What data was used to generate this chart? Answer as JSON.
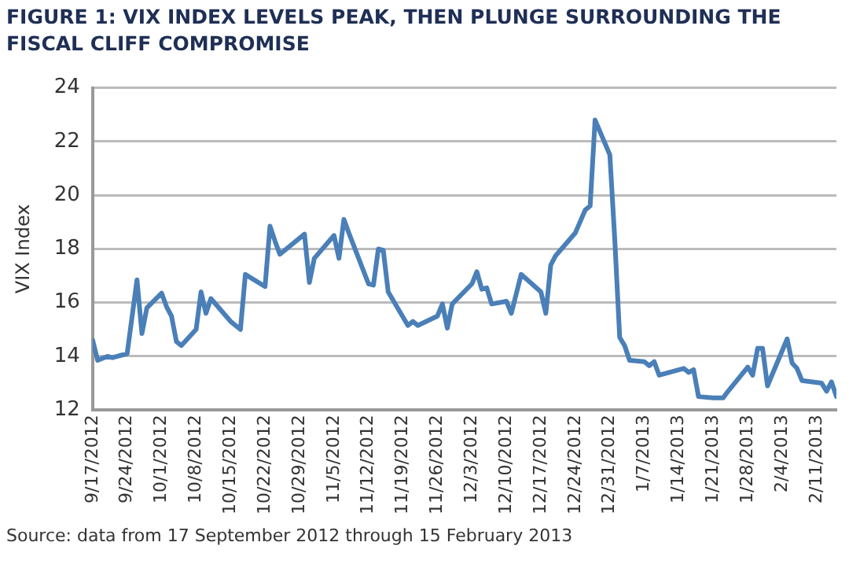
{
  "chart_data": {
    "type": "line",
    "title": "FIGURE 1: VIX INDEX LEVELS PEAK, THEN PLUNGE SURROUNDING THE FISCAL CLIFF COMPROMISE",
    "ylabel": "VIX Index",
    "annotations": [
      "Source: data from 17 September 2012 through 15 February 2013"
    ],
    "x": [
      "2012-09-17",
      "2012-09-18",
      "2012-09-20",
      "2012-09-21",
      "2012-09-24",
      "2012-09-26",
      "2012-09-27",
      "2012-09-28",
      "2012-10-01",
      "2012-10-02",
      "2012-10-03",
      "2012-10-04",
      "2012-10-05",
      "2012-10-08",
      "2012-10-09",
      "2012-10-10",
      "2012-10-11",
      "2012-10-15",
      "2012-10-17",
      "2012-10-18",
      "2012-10-22",
      "2012-10-23",
      "2012-10-24",
      "2012-10-25",
      "2012-10-30",
      "2012-10-31",
      "2012-11-01",
      "2012-11-05",
      "2012-11-06",
      "2012-11-07",
      "2012-11-08",
      "2012-11-12",
      "2012-11-13",
      "2012-11-14",
      "2012-11-15",
      "2012-11-16",
      "2012-11-20",
      "2012-11-21",
      "2012-11-22",
      "2012-11-26",
      "2012-11-27",
      "2012-11-28",
      "2012-11-29",
      "2012-12-03",
      "2012-12-04",
      "2012-12-05",
      "2012-12-06",
      "2012-12-07",
      "2012-12-10",
      "2012-12-11",
      "2012-12-13",
      "2012-12-17",
      "2012-12-18",
      "2012-12-19",
      "2012-12-20",
      "2012-12-24",
      "2012-12-26",
      "2012-12-27",
      "2012-12-28",
      "2012-12-31",
      "2013-01-01",
      "2013-01-02",
      "2013-01-03",
      "2013-01-04",
      "2013-01-07",
      "2013-01-08",
      "2013-01-09",
      "2013-01-10",
      "2013-01-15",
      "2013-01-16",
      "2013-01-17",
      "2013-01-18",
      "2013-01-21",
      "2013-01-23",
      "2013-01-24",
      "2013-01-28",
      "2013-01-29",
      "2013-01-30",
      "2013-01-31",
      "2013-02-01",
      "2013-02-05",
      "2013-02-06",
      "2013-02-07",
      "2013-02-08",
      "2013-02-12",
      "2013-02-13",
      "2013-02-14",
      "2013-02-15"
    ],
    "series": [
      {
        "color": "#4a7fb8",
        "values": [
          14.6,
          13.85,
          14.0,
          13.95,
          14.1,
          16.85,
          14.85,
          15.8,
          16.35,
          15.85,
          15.5,
          14.55,
          14.4,
          15.0,
          16.4,
          15.6,
          16.15,
          15.3,
          15.0,
          17.05,
          16.6,
          18.85,
          18.3,
          17.8,
          18.55,
          16.75,
          17.65,
          18.5,
          17.65,
          19.1,
          18.6,
          16.7,
          16.65,
          18.0,
          17.95,
          16.4,
          15.15,
          15.3,
          15.15,
          15.5,
          15.95,
          15.05,
          15.95,
          16.7,
          17.15,
          16.5,
          16.55,
          15.95,
          16.05,
          15.6,
          17.05,
          16.4,
          15.6,
          17.4,
          17.75,
          18.6,
          19.45,
          19.6,
          22.8,
          21.5,
          18.35,
          14.7,
          14.4,
          13.85,
          13.8,
          13.65,
          13.8,
          13.3,
          13.55,
          13.4,
          13.5,
          12.5,
          12.45,
          12.45,
          12.7,
          13.6,
          13.3,
          14.3,
          14.3,
          12.9,
          14.65,
          13.75,
          13.55,
          13.1,
          13.0,
          12.7,
          13.05,
          12.5
        ]
      }
    ],
    "xlim": [
      "2012-09-17",
      "2013-02-15"
    ],
    "xticks": [
      {
        "value": "2012-09-17",
        "label": "9/17/2012"
      },
      {
        "value": "2012-09-24",
        "label": "9/24/2012"
      },
      {
        "value": "2012-10-01",
        "label": "10/1/2012"
      },
      {
        "value": "2012-10-08",
        "label": "10/8/2012"
      },
      {
        "value": "2012-10-15",
        "label": "10/15/2012"
      },
      {
        "value": "2012-10-22",
        "label": "10/22/2012"
      },
      {
        "value": "2012-10-29",
        "label": "10/29/2012"
      },
      {
        "value": "2012-11-05",
        "label": "11/5/2012"
      },
      {
        "value": "2012-11-12",
        "label": "11/12/2012"
      },
      {
        "value": "2012-11-19",
        "label": "11/19/2012"
      },
      {
        "value": "2012-11-26",
        "label": "11/26/2012"
      },
      {
        "value": "2012-12-03",
        "label": "12/3/2012"
      },
      {
        "value": "2012-12-10",
        "label": "12/10/2012"
      },
      {
        "value": "2012-12-17",
        "label": "12/17/2012"
      },
      {
        "value": "2012-12-24",
        "label": "12/24/2012"
      },
      {
        "value": "2012-12-31",
        "label": "12/31/2012"
      },
      {
        "value": "2013-01-07",
        "label": "1/7/2013"
      },
      {
        "value": "2013-01-14",
        "label": "1/14/2013"
      },
      {
        "value": "2013-01-21",
        "label": "1/21/2013"
      },
      {
        "value": "2013-01-28",
        "label": "1/28/2013"
      },
      {
        "value": "2013-02-04",
        "label": "2/4/2013"
      },
      {
        "value": "2013-02-11",
        "label": "2/11/2013"
      }
    ],
    "ylim": [
      12,
      24
    ],
    "yticks": [
      12,
      14,
      16,
      18,
      20,
      22,
      24
    ],
    "grid": "y",
    "legend": false,
    "marker": "none",
    "line_style": "solid"
  }
}
